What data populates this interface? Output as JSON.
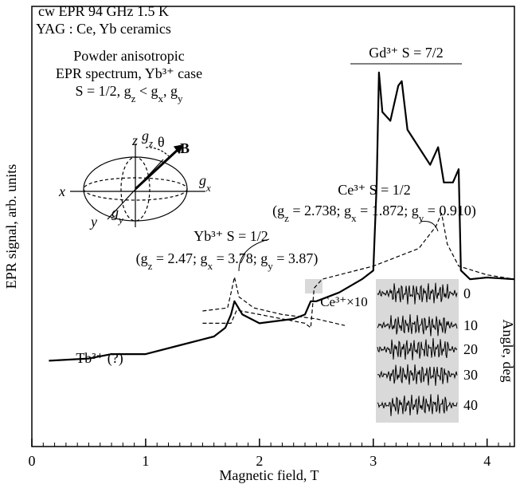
{
  "chart_data": {
    "type": "line",
    "x_label": "Magnetic field, T",
    "y_label": "EPR signal, arb. units",
    "xlim": [
      0,
      4.24
    ],
    "xticks": [
      0,
      1,
      2,
      3,
      4
    ],
    "xminorticks": [
      0.1,
      0.2,
      0.3,
      0.4,
      0.5,
      0.6,
      0.7,
      0.8,
      0.9,
      1.1,
      1.2,
      1.3,
      1.4,
      1.5,
      1.6,
      1.7,
      1.8,
      1.9,
      2.1,
      2.2,
      2.3,
      2.4,
      2.5,
      2.6,
      2.7,
      2.8,
      2.9,
      3.1,
      3.2,
      3.3,
      3.4,
      3.5,
      3.6,
      3.7,
      3.8,
      3.9,
      4.1,
      4.2
    ],
    "ylim": [
      0,
      100
    ],
    "series": [
      {
        "color": "#000000",
        "dash": false,
        "x": [
          0.15,
          0.5,
          0.7,
          1.0,
          1.3,
          1.6,
          1.7,
          1.75,
          1.78,
          1.85,
          2.0,
          2.3,
          2.4,
          2.45,
          2.5,
          2.7,
          2.9,
          3.0,
          3.03,
          3.05,
          3.08,
          3.15,
          3.22,
          3.25,
          3.3,
          3.4,
          3.5,
          3.57,
          3.62,
          3.7,
          3.75,
          3.77,
          3.85,
          4.0,
          4.24
        ],
        "values": [
          19.5,
          20,
          21,
          21,
          23,
          25,
          27,
          30,
          33,
          30,
          28,
          29,
          30,
          33,
          33,
          35,
          38,
          40,
          60,
          85,
          76,
          74,
          82,
          83,
          72,
          68,
          64,
          68,
          60,
          60,
          63,
          40,
          38,
          38.4,
          38
        ]
      },
      {
        "color": "#000000",
        "dash": true,
        "x": [
          1.5,
          1.72,
          1.76,
          1.78,
          1.82,
          1.95,
          2.2,
          2.5,
          2.75
        ],
        "values": [
          30.8,
          31.5,
          36,
          38.5,
          34,
          31.5,
          30,
          29,
          27.5
        ]
      },
      {
        "color": "#000000",
        "dash": true,
        "x": [
          1.5,
          1.75,
          1.8,
          2.0,
          2.4,
          2.45,
          2.48,
          2.55,
          3.0,
          3.4,
          3.55,
          3.6,
          3.65,
          3.75,
          4.0,
          4.24
        ],
        "values": [
          28,
          28,
          31,
          30,
          28,
          27,
          36,
          38,
          41,
          45,
          50,
          53,
          46,
          41,
          39,
          38
        ]
      }
    ],
    "annotations": {
      "conditions": "cw EPR 94 GHz 1.5 K",
      "sample": "YAG : Ce, Yb ceramics",
      "powder1": "Powder anisotropic",
      "powder2": "EPR spectrum, Yb³⁺ case",
      "powder3": [
        "S = 1/2, g",
        "z",
        " < g",
        "x",
        ", g",
        "y"
      ],
      "gd": "Gd³⁺  S = 7/2",
      "ce": "Ce³⁺  S = 1/2",
      "ce_params": [
        "(g",
        "z",
        " = 2.738; g",
        "x",
        " = 1.872; g",
        "y",
        " = 0.910)"
      ],
      "yb": "Yb³⁺  S = 1/2",
      "yb_params": [
        "(g",
        "z",
        " = 2.47; g",
        "x",
        " = 3.78; g",
        "y",
        " = 3.87)"
      ],
      "tb": "Tb³⁺ (?)",
      "ce10": "Ce³⁺×10",
      "axis_z": "z",
      "axis_x": "x",
      "axis_y": "y",
      "g_z": [
        "g",
        "z"
      ],
      "g_x": [
        "g",
        "x"
      ],
      "g_y": [
        "g",
        "y"
      ],
      "theta": "θ",
      "field": "B"
    },
    "inset": {
      "label": "Angle, deg",
      "angles": [
        "0",
        "10",
        "20",
        "30",
        "40"
      ]
    }
  }
}
